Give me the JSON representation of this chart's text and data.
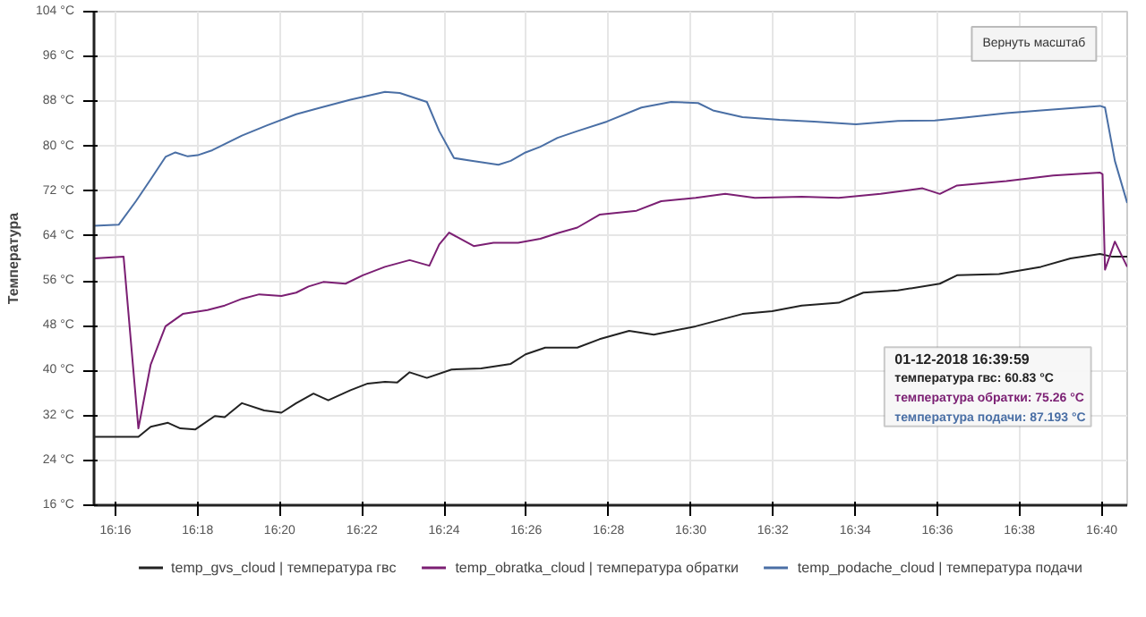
{
  "chart_data": {
    "type": "line",
    "ylabel": "Температура",
    "xlim": [
      16.258,
      16.677
    ],
    "xticks": [
      {
        "value": 16.2667,
        "label": "16:16"
      },
      {
        "value": 16.3,
        "label": "16:18"
      },
      {
        "value": 16.3333,
        "label": "16:20"
      },
      {
        "value": 16.3667,
        "label": "16:22"
      },
      {
        "value": 16.4,
        "label": "16:24"
      },
      {
        "value": 16.4333,
        "label": "16:26"
      },
      {
        "value": 16.4667,
        "label": "16:28"
      },
      {
        "value": 16.5,
        "label": "16:30"
      },
      {
        "value": 16.5333,
        "label": "16:32"
      },
      {
        "value": 16.5667,
        "label": "16:34"
      },
      {
        "value": 16.6,
        "label": "16:36"
      },
      {
        "value": 16.6333,
        "label": "16:38"
      },
      {
        "value": 16.6667,
        "label": "16:40"
      }
    ],
    "ylim": [
      16,
      104
    ],
    "yticks": [
      {
        "value": 16,
        "label": "16 °C"
      },
      {
        "value": 24,
        "label": "24 °C"
      },
      {
        "value": 32,
        "label": "32 °C"
      },
      {
        "value": 40,
        "label": "40 °C"
      },
      {
        "value": 48,
        "label": "48 °C"
      },
      {
        "value": 56,
        "label": "56 °C"
      },
      {
        "value": 64,
        "label": "64 °C"
      },
      {
        "value": 72,
        "label": "72 °C"
      },
      {
        "value": 80,
        "label": "80 °C"
      },
      {
        "value": 88,
        "label": "88 °C"
      },
      {
        "value": 96,
        "label": "96 °C"
      },
      {
        "value": 104,
        "label": "104 °C"
      }
    ],
    "grid": true,
    "legend": "bottom",
    "marker": "none",
    "line_style": "solid",
    "series": [
      {
        "name": "temp_gvs_cloud | температура гвс",
        "color": "#222222",
        "x": [
          16.258,
          16.276,
          16.281,
          16.288,
          16.293,
          16.299,
          16.307,
          16.311,
          16.318,
          16.327,
          16.334,
          16.34,
          16.347,
          16.353,
          16.362,
          16.369,
          16.376,
          16.381,
          16.386,
          16.393,
          16.403,
          16.415,
          16.427,
          16.433,
          16.441,
          16.454,
          16.463,
          16.475,
          16.485,
          16.502,
          16.521,
          16.533,
          16.545,
          16.56,
          16.57,
          16.584,
          16.601,
          16.608,
          16.625,
          16.642,
          16.654,
          16.666,
          16.671,
          16.677
        ],
        "values": [
          28.2,
          28.2,
          30.0,
          30.7,
          29.7,
          29.5,
          31.9,
          31.7,
          34.2,
          32.9,
          32.5,
          34.2,
          35.9,
          34.7,
          36.5,
          37.7,
          38.0,
          37.9,
          39.7,
          38.7,
          40.2,
          40.4,
          41.2,
          42.9,
          44.1,
          44.1,
          45.6,
          47.1,
          46.4,
          47.9,
          50.1,
          50.6,
          51.6,
          52.1,
          53.9,
          54.3,
          55.5,
          57.0,
          57.2,
          58.5,
          60.0,
          60.8,
          60.3,
          60.3
        ]
      },
      {
        "name": "temp_obratka_cloud | температура обратки",
        "color": "#7b1f73",
        "x": [
          16.258,
          16.27,
          16.276,
          16.281,
          16.287,
          16.294,
          16.304,
          16.311,
          16.318,
          16.325,
          16.334,
          16.34,
          16.345,
          16.351,
          16.36,
          16.367,
          16.376,
          16.386,
          16.394,
          16.398,
          16.402,
          16.412,
          16.42,
          16.43,
          16.439,
          16.446,
          16.454,
          16.463,
          16.478,
          16.488,
          16.502,
          16.514,
          16.526,
          16.545,
          16.56,
          16.577,
          16.594,
          16.601,
          16.608,
          16.628,
          16.647,
          16.666,
          16.667,
          16.668,
          16.672,
          16.677
        ],
        "values": [
          60.0,
          60.3,
          29.7,
          41.1,
          47.9,
          50.1,
          50.8,
          51.6,
          52.8,
          53.6,
          53.3,
          53.9,
          55.0,
          55.8,
          55.5,
          57.0,
          58.5,
          59.7,
          58.7,
          62.5,
          64.6,
          62.2,
          62.8,
          62.8,
          63.5,
          64.5,
          65.5,
          67.8,
          68.5,
          70.2,
          70.8,
          71.5,
          70.8,
          71.0,
          70.8,
          71.5,
          72.5,
          71.5,
          73.0,
          73.8,
          74.8,
          75.3,
          75.0,
          58.0,
          63.0,
          58.5
        ]
      },
      {
        "name": "temp_podache_cloud | температура подачи",
        "color": "#4a6fa5",
        "x": [
          16.258,
          16.268,
          16.275,
          16.281,
          16.287,
          16.291,
          16.296,
          16.3,
          16.306,
          16.311,
          16.318,
          16.328,
          16.34,
          16.35,
          16.362,
          16.376,
          16.382,
          16.393,
          16.398,
          16.404,
          16.411,
          16.422,
          16.427,
          16.433,
          16.439,
          16.446,
          16.454,
          16.466,
          16.48,
          16.492,
          16.503,
          16.509,
          16.521,
          16.536,
          16.55,
          16.567,
          16.584,
          16.599,
          16.611,
          16.628,
          16.642,
          16.666,
          16.668,
          16.672,
          16.677
        ],
        "values": [
          65.8,
          66.0,
          70.2,
          74.1,
          78.1,
          78.9,
          78.2,
          78.4,
          79.3,
          80.4,
          81.9,
          83.7,
          85.7,
          86.9,
          88.3,
          89.7,
          89.5,
          87.9,
          82.7,
          77.9,
          77.4,
          76.7,
          77.4,
          78.9,
          79.9,
          81.5,
          82.7,
          84.4,
          86.9,
          87.9,
          87.7,
          86.4,
          85.2,
          84.7,
          84.4,
          83.9,
          84.5,
          84.6,
          85.1,
          85.9,
          86.4,
          87.2,
          86.9,
          77.4,
          69.9
        ]
      }
    ],
    "annotations": [
      "Вернуть масштаб",
      "01-12-2018 16:39:59",
      "температура гвс: 60.83 °C",
      "температура обратки: 75.26 °C",
      "температура подачи: 87.193 °C"
    ]
  }
}
